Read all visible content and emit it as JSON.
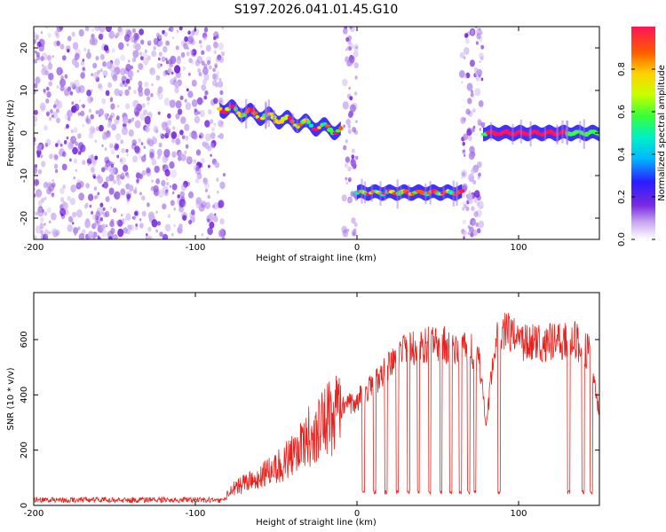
{
  "title": "S197.2026.041.01.45.G10",
  "colors": {
    "snr_line": "#e8231f",
    "axis": "#000000",
    "plot_bg": "#ffffff"
  },
  "chart_data": [
    {
      "type": "heatmap",
      "name": "spectrogram",
      "xlabel": "Height of straight line (km)",
      "ylabel": "Frequency (Hz)",
      "xlim": [
        -200,
        150
      ],
      "ylim": [
        -25,
        25
      ],
      "xticks": [
        "-200",
        "-100",
        "0",
        "100"
      ],
      "yticks": [
        "20",
        "10",
        "0",
        "-10",
        "-20"
      ],
      "colorbar": {
        "label": "Normalized spectral amplitude",
        "range": [
          0.0,
          1.0
        ],
        "ticks": [
          "0.0",
          "0.2",
          "0.4",
          "0.6",
          "0.8"
        ]
      },
      "tracks": [
        {
          "x_range": [
            -85,
            -10
          ],
          "freq_start": 6,
          "freq_end": 0.5,
          "note": "descending wavy track"
        },
        {
          "x_range": [
            0,
            65
          ],
          "freq": -14,
          "note": "flat track"
        },
        {
          "x_range": [
            78,
            150
          ],
          "freq": 0,
          "note": "flat track"
        }
      ],
      "noise_regions": [
        {
          "x_range": [
            -200,
            -82
          ],
          "note": "dense scattered noise"
        },
        {
          "x_range": [
            -8,
            0
          ],
          "note": "noise band"
        },
        {
          "x_range": [
            65,
            78
          ],
          "note": "noise band"
        }
      ]
    },
    {
      "type": "line",
      "name": "snr",
      "xlabel": "Height of straight line (km)",
      "ylabel": "SNR (10 * v/v)",
      "xlim": [
        -200,
        150
      ],
      "ylim": [
        0,
        770
      ],
      "xticks": [
        "-200",
        "-100",
        "0",
        "100"
      ],
      "yticks": [
        "600",
        "400",
        "200",
        "0"
      ],
      "envelope": [
        {
          "x": -200,
          "y": 20
        },
        {
          "x": -82,
          "y": 20
        },
        {
          "x": -78,
          "y": 60
        },
        {
          "x": -60,
          "y": 100
        },
        {
          "x": -40,
          "y": 180
        },
        {
          "x": -25,
          "y": 280
        },
        {
          "x": -10,
          "y": 350
        },
        {
          "x": 0,
          "y": 380
        },
        {
          "x": 10,
          "y": 430
        },
        {
          "x": 20,
          "y": 500
        },
        {
          "x": 30,
          "y": 560
        },
        {
          "x": 40,
          "y": 580
        },
        {
          "x": 60,
          "y": 580
        },
        {
          "x": 70,
          "y": 560
        },
        {
          "x": 76,
          "y": 520
        },
        {
          "x": 80,
          "y": 260
        },
        {
          "x": 85,
          "y": 600
        },
        {
          "x": 92,
          "y": 640
        },
        {
          "x": 100,
          "y": 590
        },
        {
          "x": 120,
          "y": 590
        },
        {
          "x": 135,
          "y": 600
        },
        {
          "x": 145,
          "y": 540
        },
        {
          "x": 150,
          "y": 330
        }
      ],
      "dropouts_x": [
        4,
        11,
        18,
        25,
        32,
        38,
        45,
        52,
        58,
        64,
        69,
        73,
        88,
        131,
        140,
        145
      ]
    }
  ]
}
